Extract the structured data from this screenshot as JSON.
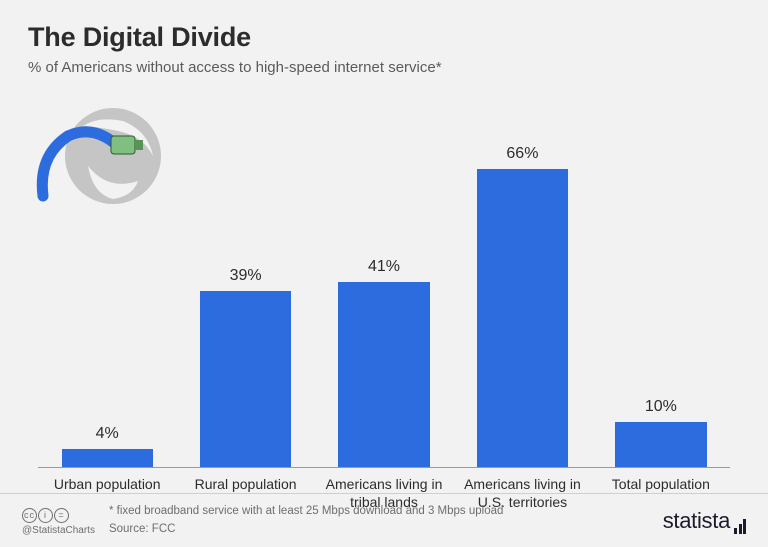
{
  "title": "The Digital Divide",
  "subtitle": "% of Americans without access to high-speed internet service*",
  "chart": {
    "type": "bar",
    "value_suffix": "%",
    "ymax": 70,
    "bar_color": "#2d6cdf",
    "bar_width_pct": 66,
    "axis_color": "#9a9a9a",
    "background_color": "#f2f2f2",
    "label_fontsize": 16,
    "category_fontsize": 14,
    "items": [
      {
        "label": "Urban population",
        "value": 4
      },
      {
        "label": "Rural population",
        "value": 39
      },
      {
        "label": "Americans living in tribal lands",
        "value": 41
      },
      {
        "label": "Americans living in U.S. territories",
        "value": 66
      },
      {
        "label": "Total population",
        "value": 10
      }
    ],
    "decoration": {
      "globe_color": "#c5c5c5",
      "cable_color": "#2d6cdf",
      "plug_color": "#7fbf7f"
    }
  },
  "footer": {
    "handle": "@StatistaCharts",
    "footnote": "* fixed broadband service with at least 25 Mbps download and 3 Mbps upload",
    "source": "Source: FCC",
    "brand": "statista",
    "cc_glyphs": [
      "cc",
      "i",
      "="
    ]
  }
}
